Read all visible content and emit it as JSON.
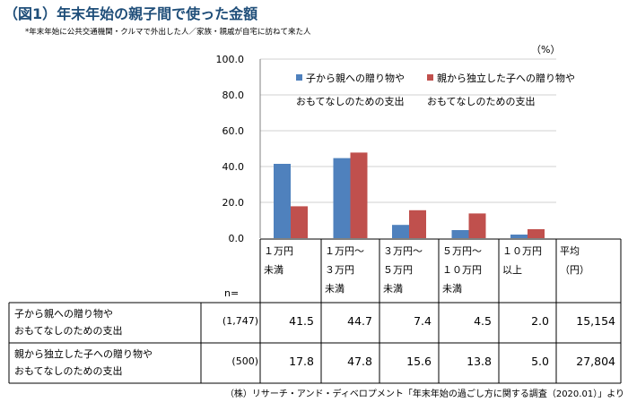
{
  "title": "（図1）年末年始の親子間で使った金額",
  "subtitle": "*年末年始に公共交通機関・クルマで外出した人／家族・親戚が自宅に訪ねて来た人",
  "unit_label": "（%）",
  "n_label": "n=",
  "source": "（株）リサーチ・アンド・ディベロプメント「年末年始の過ごし方に関する調査（2020.01）」より",
  "chart_data": {
    "type": "bar",
    "ylim": [
      0,
      100
    ],
    "yticks": [
      "0.0",
      "20.0",
      "40.0",
      "60.0",
      "80.0",
      "100.0"
    ],
    "categories": [
      [
        "１万円",
        "未満"
      ],
      [
        "１万円～",
        "３万円",
        "未満"
      ],
      [
        "３万円～",
        "５万円",
        "未満"
      ],
      [
        "５万円～",
        "１０万円",
        "未満"
      ],
      [
        "１０万円",
        "以上"
      ]
    ],
    "extra_header": [
      "平均",
      "（円）"
    ],
    "series": [
      {
        "name": "子から親への贈り物やおもてなしのための支出",
        "legend_lines": [
          "子から親への贈り物や",
          "おもてなしのための支出"
        ],
        "row_lines": [
          "子から親への贈り物や",
          "おもてなしのための支出"
        ],
        "n": "(1,747)",
        "color": "#4f81bd",
        "values": [
          41.5,
          44.7,
          7.4,
          4.5,
          2.0
        ],
        "value_labels": [
          "41.5",
          "44.7",
          "7.4",
          "4.5",
          "2.0"
        ],
        "average": "15,154"
      },
      {
        "name": "親から独立した子への贈り物やおもてなしのための支出",
        "legend_lines": [
          "親から独立した子への贈り物や",
          "おもてなしのための支出"
        ],
        "row_lines": [
          "親から独立した子への贈り物や",
          "おもてなしのための支出"
        ],
        "n": "(500)",
        "color": "#c0504d",
        "values": [
          17.8,
          47.8,
          15.6,
          13.8,
          5.0
        ],
        "value_labels": [
          "17.8",
          "47.8",
          "15.6",
          "13.8",
          "5.0"
        ],
        "average": "27,804"
      }
    ]
  }
}
